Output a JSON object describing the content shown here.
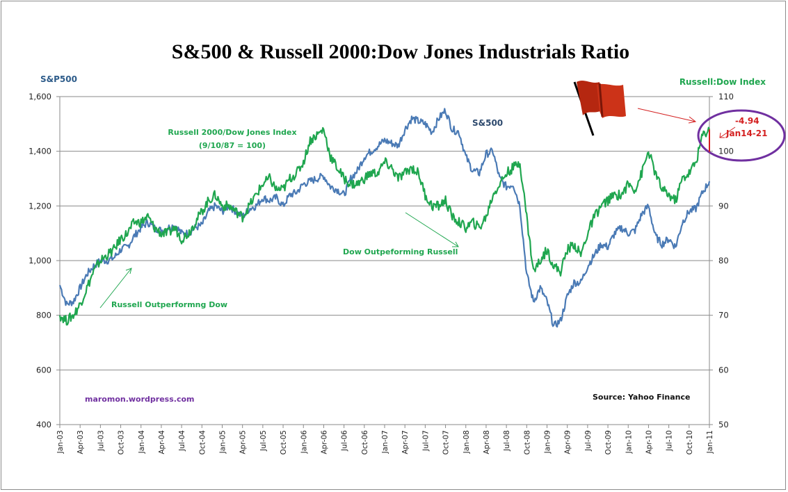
{
  "chart_data": {
    "type": "line",
    "title": "S&500 & Russell 2000:Dow Jones Industrials Ratio",
    "ylabel": "S&P500",
    "y2label": "Russell:Dow Index",
    "ylim": [
      400,
      1600
    ],
    "y2lim": [
      50,
      110
    ],
    "yticks": [
      "400",
      "600",
      "800",
      "1,000",
      "1,200",
      "1,400",
      "1,600"
    ],
    "y2ticks": [
      "50",
      "60",
      "70",
      "80",
      "90",
      "100",
      "110"
    ],
    "grid": true,
    "xticks": [
      "Jan-03",
      "Apr-03",
      "Jul-03",
      "Oct-03",
      "Jan-04",
      "Apr-04",
      "Jul-04",
      "Oct-04",
      "Jan-05",
      "Apr-05",
      "Jul-05",
      "Oct-05",
      "Jan-06",
      "Apr-06",
      "Jul-06",
      "Oct-06",
      "Jan-07",
      "Apr-07",
      "Jul-07",
      "Oct-07",
      "Jan-08",
      "Apr-08",
      "Jul-08",
      "Oct-08",
      "Jan-09",
      "Apr-09",
      "Jul-09",
      "Oct-09",
      "Jan-10",
      "Apr-10",
      "Jul-10",
      "Oct-10",
      "Jan-11"
    ],
    "x_note": "monthly points from Jan-03 to Jan-11",
    "series": [
      {
        "name": "S&500",
        "axis": "left",
        "color": "#4a7ab5",
        "values": [
          910,
          840,
          850,
          900,
          950,
          980,
          1000,
          1000,
          1010,
          1040,
          1050,
          1090,
          1120,
          1140,
          1120,
          1110,
          1120,
          1130,
          1100,
          1100,
          1120,
          1130,
          1180,
          1200,
          1180,
          1200,
          1180,
          1160,
          1190,
          1200,
          1230,
          1220,
          1230,
          1200,
          1240,
          1250,
          1280,
          1290,
          1300,
          1310,
          1270,
          1260,
          1240,
          1300,
          1330,
          1380,
          1400,
          1420,
          1440,
          1430,
          1420,
          1480,
          1520,
          1510,
          1500,
          1470,
          1520,
          1550,
          1480,
          1470,
          1380,
          1330,
          1320,
          1390,
          1400,
          1300,
          1270,
          1280,
          1200,
          950,
          850,
          900,
          850,
          760,
          780,
          870,
          920,
          920,
          980,
          1020,
          1060,
          1050,
          1100,
          1120,
          1100,
          1110,
          1170,
          1200,
          1090,
          1060,
          1080,
          1050,
          1140,
          1180,
          1190,
          1250,
          1290
        ]
      },
      {
        "name": "Russell 2000/Dow Jones Index",
        "axis": "right",
        "color": "#1fa64f",
        "values": [
          70,
          69,
          70,
          72,
          75,
          78,
          80,
          81,
          82,
          84,
          85,
          87,
          87,
          88,
          86,
          85,
          85,
          86,
          84,
          85,
          87,
          89,
          91,
          92,
          90,
          90,
          89,
          88,
          90,
          92,
          94,
          95,
          93,
          93,
          95,
          96,
          98,
          102,
          103,
          104,
          99,
          97,
          95,
          94,
          94,
          95,
          96,
          96,
          98,
          97,
          95,
          96,
          97,
          96,
          92,
          90,
          90,
          91,
          88,
          87,
          86,
          87,
          86,
          88,
          92,
          94,
          96,
          97,
          98,
          88,
          78,
          80,
          82,
          79,
          78,
          82,
          83,
          81,
          85,
          88,
          90,
          91,
          92,
          92,
          94,
          93,
          96,
          100,
          96,
          93,
          92,
          91,
          95,
          96,
          98,
          103,
          104
        ]
      }
    ],
    "annotations": [
      {
        "text": "Russell 2000/Dow Jones  Index",
        "color": "#1fa64f"
      },
      {
        "text": "(9/10/87  = 100)",
        "color": "#1fa64f"
      },
      {
        "text": "S&500",
        "color": "#2e4a6e"
      },
      {
        "text": "Russell Outperformng Dow",
        "color": "#1fa64f"
      },
      {
        "text": "Dow Outpeforming Russell",
        "color": "#1fa64f"
      },
      {
        "text": "-4.94",
        "color": "#d42020"
      },
      {
        "text": "Jan14-21",
        "color": "#d42020"
      },
      {
        "text": "maromon.wordpress.com",
        "color": "#7030a0"
      },
      {
        "text": "Source:  Yahoo Finance",
        "color": "#111111"
      }
    ],
    "drop": {
      "label": "-4.94",
      "period": "Jan14-21",
      "from": 104.0,
      "to": 99.9
    }
  }
}
